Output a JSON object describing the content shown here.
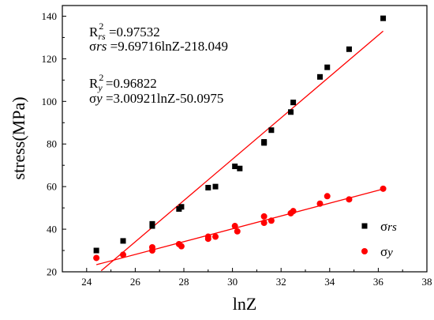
{
  "chart_data": {
    "type": "scatter",
    "xlabel": "lnZ",
    "ylabel": "stress(MPa)",
    "xlim": [
      23,
      38
    ],
    "ylim": [
      20,
      145
    ],
    "x_ticks": [
      24,
      26,
      28,
      30,
      32,
      34,
      36,
      38
    ],
    "y_ticks": [
      20,
      40,
      60,
      80,
      100,
      120,
      140
    ],
    "grid": false,
    "legend_position": "bottom-right",
    "annotations": {
      "r2_rs": {
        "prefix": "R",
        "sup": "2",
        "sub": "rs",
        "value": " =0.97532"
      },
      "eq_rs": {
        "sigma": "σ",
        "sub": "rs",
        "expr": " =9.69716lnZ-218.049"
      },
      "r2_y": {
        "prefix": "R",
        "sup": "2",
        "sub": "y",
        "value": " =0.96822"
      },
      "eq_y": {
        "sigma": "σ",
        "sub": "y",
        "expr": " =3.00921lnZ-50.0975"
      }
    },
    "series": [
      {
        "name": "σrs",
        "legend": {
          "sigma": "σ",
          "sub": "rs"
        },
        "marker": "square",
        "color": "#000000",
        "fit_color": "#ff0000",
        "fit": {
          "slope": 9.69716,
          "intercept": -218.049,
          "x_range": [
            24.6,
            36.2
          ]
        },
        "points": [
          [
            24.4,
            30
          ],
          [
            25.5,
            34.5
          ],
          [
            26.7,
            41.5
          ],
          [
            26.7,
            42.5
          ],
          [
            27.8,
            49.5
          ],
          [
            27.9,
            50.5
          ],
          [
            29.0,
            59.5
          ],
          [
            29.3,
            60
          ],
          [
            30.1,
            69.5
          ],
          [
            30.3,
            68.5
          ],
          [
            31.3,
            81
          ],
          [
            31.3,
            80.5
          ],
          [
            31.6,
            86.5
          ],
          [
            32.4,
            95
          ],
          [
            32.5,
            99.5
          ],
          [
            33.6,
            111.5
          ],
          [
            33.9,
            116
          ],
          [
            34.8,
            124.5
          ],
          [
            36.2,
            139
          ]
        ]
      },
      {
        "name": "σy",
        "legend": {
          "sigma": "σ",
          "sub": "y"
        },
        "marker": "circle",
        "color": "#ff0000",
        "fit_color": "#ff0000",
        "fit": {
          "slope": 3.00921,
          "intercept": -50.0975,
          "x_range": [
            24.4,
            36.2
          ]
        },
        "points": [
          [
            24.4,
            26.5
          ],
          [
            25.5,
            28
          ],
          [
            26.7,
            30
          ],
          [
            26.7,
            31.5
          ],
          [
            27.8,
            33
          ],
          [
            27.9,
            32
          ],
          [
            29.0,
            35.5
          ],
          [
            29.0,
            36.5
          ],
          [
            29.3,
            36.5
          ],
          [
            30.1,
            41.5
          ],
          [
            30.2,
            39
          ],
          [
            31.3,
            46
          ],
          [
            31.3,
            43
          ],
          [
            31.6,
            44
          ],
          [
            32.4,
            47.5
          ],
          [
            32.5,
            48.5
          ],
          [
            33.6,
            52
          ],
          [
            33.9,
            55.5
          ],
          [
            34.8,
            54
          ],
          [
            36.2,
            59
          ]
        ]
      }
    ]
  }
}
